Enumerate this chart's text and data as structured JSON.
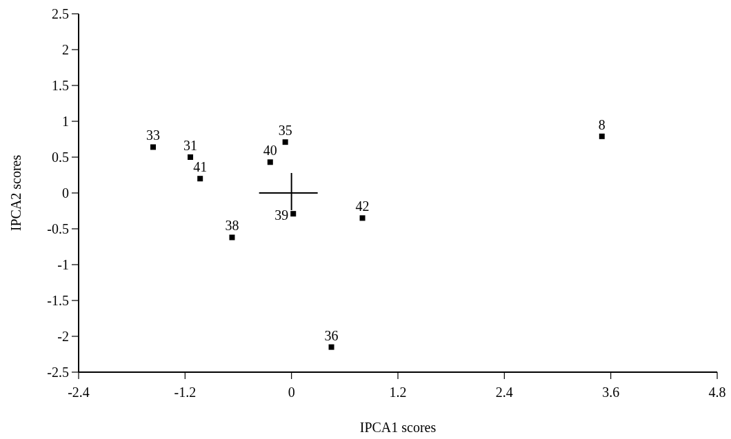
{
  "chart_data": {
    "type": "scatter",
    "xlabel": "IPCA1 scores",
    "ylabel": "IPCA2 scores",
    "x": [
      -1.56,
      -1.14,
      -1.03,
      -0.24,
      -0.07,
      0.02,
      -0.67,
      0.8,
      0.45,
      3.5
    ],
    "values": [
      0.64,
      0.5,
      0.2,
      0.43,
      0.71,
      -0.29,
      -0.62,
      -0.35,
      -2.15,
      0.79
    ],
    "color": "#000000",
    "marker": "square",
    "xlim": [
      -2.4,
      4.8
    ],
    "xticks": [
      -2.4,
      -1.2,
      0,
      1.2,
      2.4,
      3.6,
      4.8
    ],
    "ylim": [
      -2.5,
      2.5
    ],
    "yticks": [
      -2.5,
      -2,
      -1.5,
      -1,
      -0.5,
      0,
      0.5,
      1,
      1.5,
      2,
      2.5
    ],
    "annotations": [
      {
        "text": "33",
        "x": -1.56,
        "y": 0.64
      },
      {
        "text": "31",
        "x": -1.14,
        "y": 0.5
      },
      {
        "text": "41",
        "x": -1.03,
        "y": 0.2
      },
      {
        "text": "40",
        "x": -0.24,
        "y": 0.43
      },
      {
        "text": "35",
        "x": -0.07,
        "y": 0.71
      },
      {
        "text": "39",
        "x": 0.02,
        "y": -0.29
      },
      {
        "text": "38",
        "x": -0.67,
        "y": -0.62
      },
      {
        "text": "42",
        "x": 0.8,
        "y": -0.35
      },
      {
        "text": "36",
        "x": 0.45,
        "y": -2.15
      },
      {
        "text": "8",
        "x": 3.5,
        "y": 0.79
      }
    ]
  }
}
